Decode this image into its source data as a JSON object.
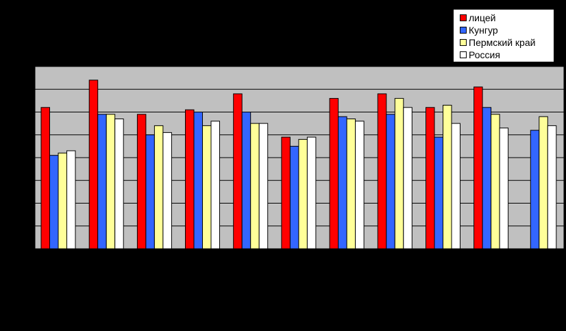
{
  "chart_data": {
    "type": "bar",
    "title": "",
    "xlabel": "",
    "ylabel": "",
    "ylim": [
      0,
      8
    ],
    "grid": true,
    "legend_position": "top-right",
    "categories": [
      "",
      "",
      "",
      "",
      "",
      "",
      "",
      "",
      "",
      "",
      ""
    ],
    "series": [
      {
        "name": "лицей",
        "color": "#ff0000",
        "values": [
          6.2,
          7.4,
          5.9,
          6.1,
          6.8,
          4.9,
          6.6,
          6.8,
          6.2,
          7.1,
          null
        ]
      },
      {
        "name": "Кунгур",
        "color": "#3366ff",
        "values": [
          4.1,
          5.9,
          5.0,
          6.0,
          6.0,
          4.5,
          5.8,
          5.9,
          4.9,
          6.2,
          5.2
        ]
      },
      {
        "name": "Пермский край",
        "color": "#ffff99",
        "values": [
          4.2,
          5.9,
          5.4,
          5.4,
          5.5,
          4.8,
          5.7,
          6.6,
          6.3,
          5.9,
          5.8
        ]
      },
      {
        "name": "Россия",
        "color": "#ffffff",
        "values": [
          4.3,
          5.7,
          5.1,
          5.6,
          5.5,
          4.9,
          5.6,
          6.2,
          5.5,
          5.3,
          5.4
        ]
      }
    ]
  }
}
